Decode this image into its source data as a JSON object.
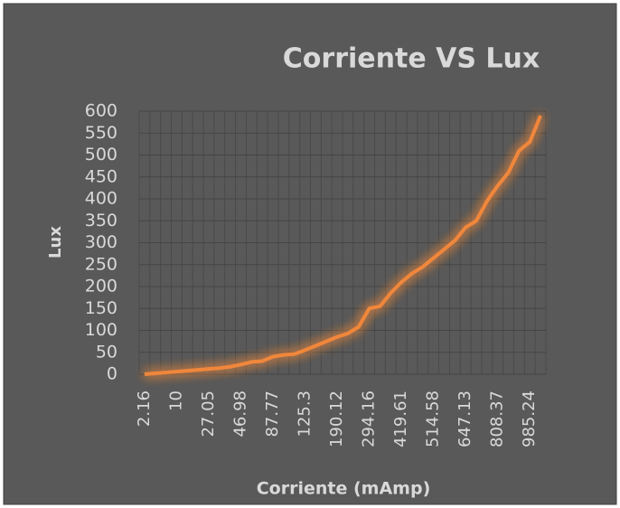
{
  "chart_data": {
    "type": "line",
    "title": "Corriente VS Lux",
    "x_label": "Corriente (mAmp)",
    "y_label": "Lux",
    "categories": [
      "2.16",
      null,
      null,
      "10",
      null,
      null,
      "27.05",
      null,
      null,
      "46.98",
      null,
      null,
      "87.77",
      null,
      null,
      "125.3",
      null,
      null,
      "190.12",
      null,
      null,
      "294.16",
      null,
      null,
      "419.61",
      null,
      null,
      "514.58",
      null,
      null,
      "647.13",
      null,
      null,
      "808.37",
      null,
      null,
      "985.24",
      null
    ],
    "series": [
      {
        "name": "Lux",
        "color": "#f0873a",
        "values": [
          0,
          2,
          4,
          6,
          8,
          10,
          12,
          14,
          17,
          22,
          28,
          30,
          40,
          44,
          46,
          55,
          65,
          75,
          85,
          93,
          108,
          150,
          155,
          185,
          210,
          230,
          245,
          265,
          285,
          305,
          335,
          350,
          395,
          430,
          460,
          510,
          530,
          590
        ]
      }
    ],
    "ylim": [
      0,
      600
    ],
    "yticks": [
      0,
      50,
      100,
      150,
      200,
      250,
      300,
      350,
      400,
      450,
      500,
      550,
      600
    ],
    "grid": true
  }
}
